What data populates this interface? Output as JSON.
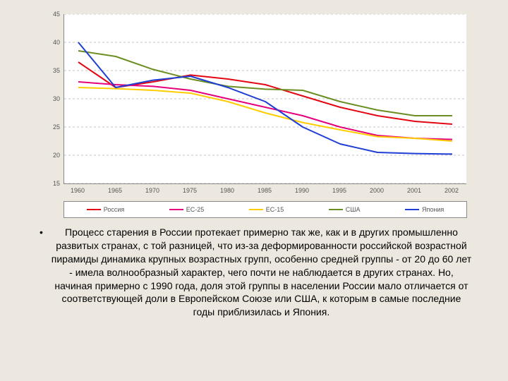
{
  "chart": {
    "type": "line",
    "background_color": "#ffffff",
    "page_background": "#ece8df",
    "ylim": [
      15,
      45
    ],
    "ytick_step": 5,
    "yticks": [
      15,
      20,
      25,
      30,
      35,
      40,
      45
    ],
    "x_categories": [
      "1960",
      "1965",
      "1970",
      "1975",
      "1980",
      "1985",
      "1990",
      "1995",
      "2000",
      "2001",
      "2002"
    ],
    "grid_color": "#888888",
    "grid_dash": "3,3",
    "axis_fontsize": 9,
    "axis_color": "#555555",
    "series": [
      {
        "name": "Россия",
        "color": "#e30613",
        "values": [
          36.5,
          32.0,
          33.0,
          34.2,
          33.5,
          32.5,
          30.5,
          28.5,
          27.0,
          26.0,
          25.5
        ]
      },
      {
        "name": "ЕС-25",
        "color": "#e6007e",
        "values": [
          33.0,
          32.5,
          32.2,
          31.5,
          30.0,
          28.5,
          27.0,
          25.0,
          23.5,
          23.0,
          22.8
        ]
      },
      {
        "name": "ЕС-15",
        "color": "#ffcc00",
        "values": [
          32.0,
          31.8,
          31.5,
          31.0,
          29.5,
          27.5,
          25.8,
          24.5,
          23.3,
          23.0,
          22.5
        ]
      },
      {
        "name": "США",
        "color": "#6b8e23",
        "values": [
          38.5,
          37.5,
          35.2,
          33.5,
          32.2,
          31.7,
          31.5,
          29.5,
          28.0,
          27.0,
          27.0
        ]
      },
      {
        "name": "Япония",
        "color": "#1f3fd4",
        "values": [
          40.0,
          32.0,
          33.3,
          34.0,
          32.0,
          29.5,
          25.0,
          22.0,
          20.5,
          20.3,
          20.2
        ]
      }
    ],
    "line_width": 2,
    "legend_border": "#888888",
    "legend_fontsize": 9
  },
  "text": {
    "bullet": "•",
    "paragraph": "Процесс старения в России протекает примерно так же, как и в других промышленно развитых странах, с той разницей, что из-за деформированности российской возрастной пирамиды динамика крупных возрастных групп, особенно средней группы - от 20 до 60 лет - имела волнообразный характер, чего почти не наблюдается в других странах. Но, начиная примерно с 1990 года, доля этой группы в населении России мало отличается от соответствующей доли в Европейском Союзе или США, к которым в самые последние годы приблизилась и Япония."
  }
}
